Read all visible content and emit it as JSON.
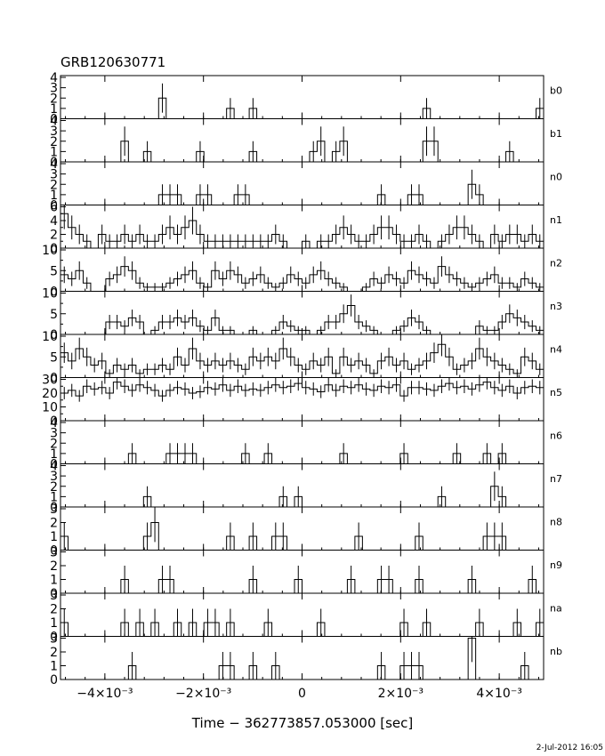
{
  "chart_data": {
    "type": "histogram-stack",
    "title": "GRB120630771",
    "xlabel": "Time − 362773857.053000 [sec]",
    "x_range": [
      -0.0049,
      0.0049
    ],
    "x_ticks": [
      {
        "value": -0.004,
        "label": "−4×10⁻³"
      },
      {
        "value": -0.002,
        "label": "−2×10⁻³"
      },
      {
        "value": 0.0,
        "label": "0"
      },
      {
        "value": 0.002,
        "label": "2×10⁻³"
      },
      {
        "value": 0.004,
        "label": "4×10⁻³"
      }
    ],
    "bins": 64,
    "panels": [
      {
        "name": "b0",
        "ylim": [
          0,
          4
        ],
        "yticks": [
          0,
          1,
          2,
          3,
          4
        ],
        "counts": [
          0,
          0,
          0,
          0,
          0,
          0,
          0,
          0,
          0,
          0,
          0,
          0,
          0,
          2,
          0,
          0,
          0,
          0,
          0,
          0,
          0,
          0,
          1,
          0,
          0,
          1,
          0,
          0,
          0,
          0,
          0,
          0,
          0,
          0,
          0,
          0,
          0,
          0,
          0,
          0,
          0,
          0,
          0,
          0,
          0,
          0,
          0,
          0,
          1,
          0,
          0,
          0,
          0,
          0,
          0,
          0,
          0,
          0,
          0,
          0,
          0,
          0,
          0,
          1
        ]
      },
      {
        "name": "b1",
        "ylim": [
          0,
          4
        ],
        "yticks": [
          0,
          1,
          2,
          3,
          4
        ],
        "counts": [
          0,
          0,
          0,
          0,
          0,
          0,
          0,
          0,
          2,
          0,
          0,
          1,
          0,
          0,
          0,
          0,
          0,
          0,
          1,
          0,
          0,
          0,
          0,
          0,
          0,
          1,
          0,
          0,
          0,
          0,
          0,
          0,
          0,
          1,
          2,
          0,
          1,
          2,
          0,
          0,
          0,
          0,
          0,
          0,
          0,
          0,
          0,
          0,
          2,
          2,
          0,
          0,
          0,
          0,
          0,
          0,
          0,
          0,
          0,
          1,
          0,
          0,
          0,
          0
        ]
      },
      {
        "name": "n0",
        "ylim": [
          0,
          4
        ],
        "yticks": [
          0,
          1,
          2,
          3,
          4
        ],
        "counts": [
          0,
          0,
          0,
          0,
          0,
          0,
          0,
          0,
          0,
          0,
          0,
          0,
          0,
          1,
          1,
          1,
          0,
          0,
          1,
          1,
          0,
          0,
          0,
          1,
          1,
          0,
          0,
          0,
          0,
          0,
          0,
          0,
          0,
          0,
          0,
          0,
          0,
          0,
          0,
          0,
          0,
          0,
          1,
          0,
          0,
          0,
          1,
          1,
          0,
          0,
          0,
          0,
          0,
          0,
          2,
          1,
          0,
          0,
          0,
          0,
          0,
          0,
          0,
          0
        ]
      },
      {
        "name": "n1",
        "ylim": [
          0,
          6
        ],
        "yticks": [
          0,
          2,
          4,
          6
        ],
        "counts": [
          5,
          3,
          2,
          1,
          0,
          2,
          1,
          1,
          2,
          1,
          2,
          1,
          1,
          2,
          3,
          2,
          3,
          4,
          2,
          1,
          1,
          1,
          1,
          1,
          1,
          1,
          1,
          1,
          2,
          1,
          0,
          0,
          1,
          0,
          1,
          1,
          2,
          3,
          2,
          1,
          1,
          2,
          3,
          3,
          2,
          1,
          1,
          2,
          1,
          0,
          1,
          2,
          3,
          3,
          2,
          1,
          0,
          2,
          1,
          2,
          2,
          1,
          2,
          1
        ]
      },
      {
        "name": "n2",
        "ylim": [
          0,
          10
        ],
        "yticks": [
          0,
          5,
          10
        ],
        "counts": [
          4,
          3,
          5,
          2,
          0,
          0,
          3,
          4,
          6,
          5,
          2,
          1,
          1,
          1,
          2,
          3,
          4,
          5,
          2,
          1,
          5,
          3,
          5,
          4,
          2,
          3,
          4,
          2,
          1,
          2,
          4,
          3,
          2,
          4,
          5,
          3,
          2,
          1,
          0,
          0,
          1,
          3,
          2,
          4,
          3,
          2,
          5,
          4,
          3,
          2,
          6,
          4,
          3,
          2,
          1,
          2,
          3,
          4,
          2,
          2,
          1,
          3,
          2,
          1
        ]
      },
      {
        "name": "n3",
        "ylim": [
          0,
          10
        ],
        "yticks": [
          0,
          5,
          10
        ],
        "counts": [
          0,
          0,
          0,
          0,
          0,
          0,
          3,
          3,
          2,
          4,
          3,
          0,
          1,
          3,
          3,
          4,
          3,
          4,
          2,
          1,
          4,
          1,
          1,
          0,
          0,
          1,
          0,
          0,
          1,
          3,
          2,
          1,
          1,
          0,
          1,
          3,
          3,
          5,
          7,
          3,
          2,
          1,
          0,
          0,
          1,
          2,
          4,
          3,
          1,
          0,
          0,
          0,
          0,
          0,
          0,
          2,
          1,
          1,
          3,
          5,
          4,
          3,
          2,
          1
        ]
      },
      {
        "name": "n4",
        "ylim": [
          0,
          10
        ],
        "yticks": [
          0,
          5,
          10
        ],
        "counts": [
          6,
          4,
          7,
          5,
          3,
          4,
          1,
          3,
          2,
          3,
          1,
          2,
          2,
          3,
          2,
          5,
          3,
          7,
          4,
          3,
          4,
          3,
          4,
          3,
          2,
          5,
          4,
          5,
          4,
          7,
          5,
          3,
          2,
          4,
          3,
          5,
          1,
          5,
          3,
          4,
          3,
          1,
          4,
          5,
          3,
          4,
          2,
          3,
          4,
          6,
          8,
          5,
          2,
          3,
          4,
          7,
          5,
          4,
          3,
          2,
          1,
          5,
          4,
          2
        ]
      },
      {
        "name": "n5",
        "ylim": [
          0,
          30
        ],
        "yticks": [
          0,
          10,
          20,
          30
        ],
        "counts": [
          20,
          22,
          18,
          25,
          23,
          24,
          20,
          28,
          25,
          22,
          26,
          24,
          22,
          18,
          22,
          24,
          23,
          20,
          21,
          24,
          23,
          26,
          22,
          25,
          22,
          23,
          22,
          24,
          26,
          24,
          25,
          27,
          24,
          23,
          21,
          26,
          22,
          25,
          24,
          26,
          23,
          22,
          25,
          24,
          26,
          18,
          24,
          24,
          23,
          22,
          25,
          27,
          24,
          25,
          23,
          26,
          28,
          24,
          22,
          25,
          20,
          24,
          25,
          24
        ]
      },
      {
        "name": "n6",
        "ylim": [
          0,
          4
        ],
        "yticks": [
          0,
          1,
          2,
          3,
          4
        ],
        "counts": [
          0,
          0,
          0,
          0,
          0,
          0,
          0,
          0,
          0,
          1,
          0,
          0,
          0,
          0,
          1,
          1,
          1,
          1,
          0,
          0,
          0,
          0,
          0,
          0,
          1,
          0,
          0,
          1,
          0,
          0,
          0,
          0,
          0,
          0,
          0,
          0,
          0,
          1,
          0,
          0,
          0,
          0,
          0,
          0,
          0,
          1,
          0,
          0,
          0,
          0,
          0,
          0,
          1,
          0,
          0,
          0,
          1,
          0,
          1,
          0,
          0,
          0,
          0,
          0
        ]
      },
      {
        "name": "n7",
        "ylim": [
          0,
          4
        ],
        "yticks": [
          0,
          1,
          2,
          3,
          4
        ],
        "counts": [
          0,
          0,
          0,
          0,
          0,
          0,
          0,
          0,
          0,
          0,
          0,
          1,
          0,
          0,
          0,
          0,
          0,
          0,
          0,
          0,
          0,
          0,
          0,
          0,
          0,
          0,
          0,
          0,
          0,
          1,
          0,
          1,
          0,
          0,
          0,
          0,
          0,
          0,
          0,
          0,
          0,
          0,
          0,
          0,
          0,
          0,
          0,
          0,
          0,
          0,
          1,
          0,
          0,
          0,
          0,
          0,
          0,
          2,
          1,
          0,
          0,
          0,
          0,
          0
        ]
      },
      {
        "name": "n8",
        "ylim": [
          0,
          3
        ],
        "yticks": [
          0,
          1,
          2,
          3
        ],
        "counts": [
          1,
          0,
          0,
          0,
          0,
          0,
          0,
          0,
          0,
          0,
          0,
          1,
          2,
          0,
          0,
          0,
          0,
          0,
          0,
          0,
          0,
          0,
          1,
          0,
          0,
          1,
          0,
          0,
          1,
          1,
          0,
          0,
          0,
          0,
          0,
          0,
          0,
          0,
          0,
          1,
          0,
          0,
          0,
          0,
          0,
          0,
          0,
          1,
          0,
          0,
          0,
          0,
          0,
          0,
          0,
          0,
          1,
          1,
          1,
          0,
          0,
          0,
          0,
          0
        ]
      },
      {
        "name": "n9",
        "ylim": [
          0,
          3
        ],
        "yticks": [
          0,
          1,
          2,
          3
        ],
        "counts": [
          0,
          0,
          0,
          0,
          0,
          0,
          0,
          0,
          1,
          0,
          0,
          0,
          0,
          1,
          1,
          0,
          0,
          0,
          0,
          0,
          0,
          0,
          0,
          0,
          0,
          1,
          0,
          0,
          0,
          0,
          0,
          1,
          0,
          0,
          0,
          0,
          0,
          0,
          1,
          0,
          0,
          0,
          1,
          1,
          0,
          0,
          0,
          1,
          0,
          0,
          0,
          0,
          0,
          0,
          1,
          0,
          0,
          0,
          0,
          0,
          0,
          0,
          1,
          0
        ]
      },
      {
        "name": "na",
        "ylim": [
          0,
          3
        ],
        "yticks": [
          0,
          1,
          2,
          3
        ],
        "counts": [
          1,
          0,
          0,
          0,
          0,
          0,
          0,
          0,
          1,
          0,
          1,
          0,
          1,
          0,
          0,
          1,
          0,
          1,
          0,
          1,
          1,
          0,
          1,
          0,
          0,
          0,
          0,
          1,
          0,
          0,
          0,
          0,
          0,
          0,
          1,
          0,
          0,
          0,
          0,
          0,
          0,
          0,
          0,
          0,
          0,
          1,
          0,
          0,
          1,
          0,
          0,
          0,
          0,
          0,
          0,
          1,
          0,
          0,
          0,
          0,
          1,
          0,
          0,
          1
        ]
      },
      {
        "name": "nb",
        "ylim": [
          0,
          3
        ],
        "yticks": [
          0,
          1,
          2,
          3
        ],
        "counts": [
          0,
          0,
          0,
          0,
          0,
          0,
          0,
          0,
          0,
          1,
          0,
          0,
          0,
          0,
          0,
          0,
          0,
          0,
          0,
          0,
          0,
          1,
          1,
          0,
          0,
          1,
          0,
          0,
          1,
          0,
          0,
          0,
          0,
          0,
          0,
          0,
          0,
          0,
          0,
          0,
          0,
          0,
          1,
          0,
          0,
          1,
          1,
          1,
          0,
          0,
          0,
          0,
          0,
          0,
          3,
          0,
          0,
          0,
          0,
          0,
          0,
          1,
          0,
          0
        ]
      }
    ]
  },
  "timestamp": "2-Jul-2012 16:05"
}
